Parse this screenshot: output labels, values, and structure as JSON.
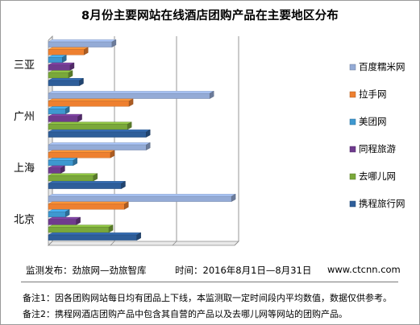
{
  "title": "8月份主要网站在线酒店团购产品在主要地区分布",
  "footer": {
    "source": "监测发布：劲旅网—劲旅智库",
    "time": "时间：2016年8月1日—8月31日",
    "site": "www.ctcnn.com"
  },
  "notes": [
    "备注1：因各团购网站每日均有团品上下线，本监测取一定时间段内平均数值，数据仅供参考。",
    "备注2：携程网酒店团购产品中包含其自营的产品以及去哪儿网等网站的团购产品。"
  ],
  "chart_data": {
    "type": "bar",
    "orientation": "horizontal",
    "style": "3d",
    "categories": [
      "三亚",
      "广州",
      "上海",
      "北京"
    ],
    "series": [
      {
        "name": "百度糯米网",
        "color": "#94abd6",
        "values": [
          2050,
          5200,
          3150,
          5900
        ]
      },
      {
        "name": "拉手网",
        "color": "#ee8030",
        "values": [
          1150,
          2600,
          2000,
          2450
        ]
      },
      {
        "name": "美团网",
        "color": "#3e98d0",
        "values": [
          450,
          550,
          800,
          550
        ]
      },
      {
        "name": "同程旅游",
        "color": "#6f3b8e",
        "values": [
          700,
          950,
          400,
          900
        ]
      },
      {
        "name": "去哪儿网",
        "color": "#7aa83a",
        "values": [
          650,
          2550,
          1450,
          1950
        ]
      },
      {
        "name": "携程旅行网",
        "color": "#2e5e9a",
        "values": [
          1000,
          3150,
          2350,
          2850
        ]
      }
    ],
    "xlim": [
      0,
      6000
    ],
    "gridlines": [
      0,
      2000,
      4000,
      6000
    ],
    "legend": "right"
  }
}
